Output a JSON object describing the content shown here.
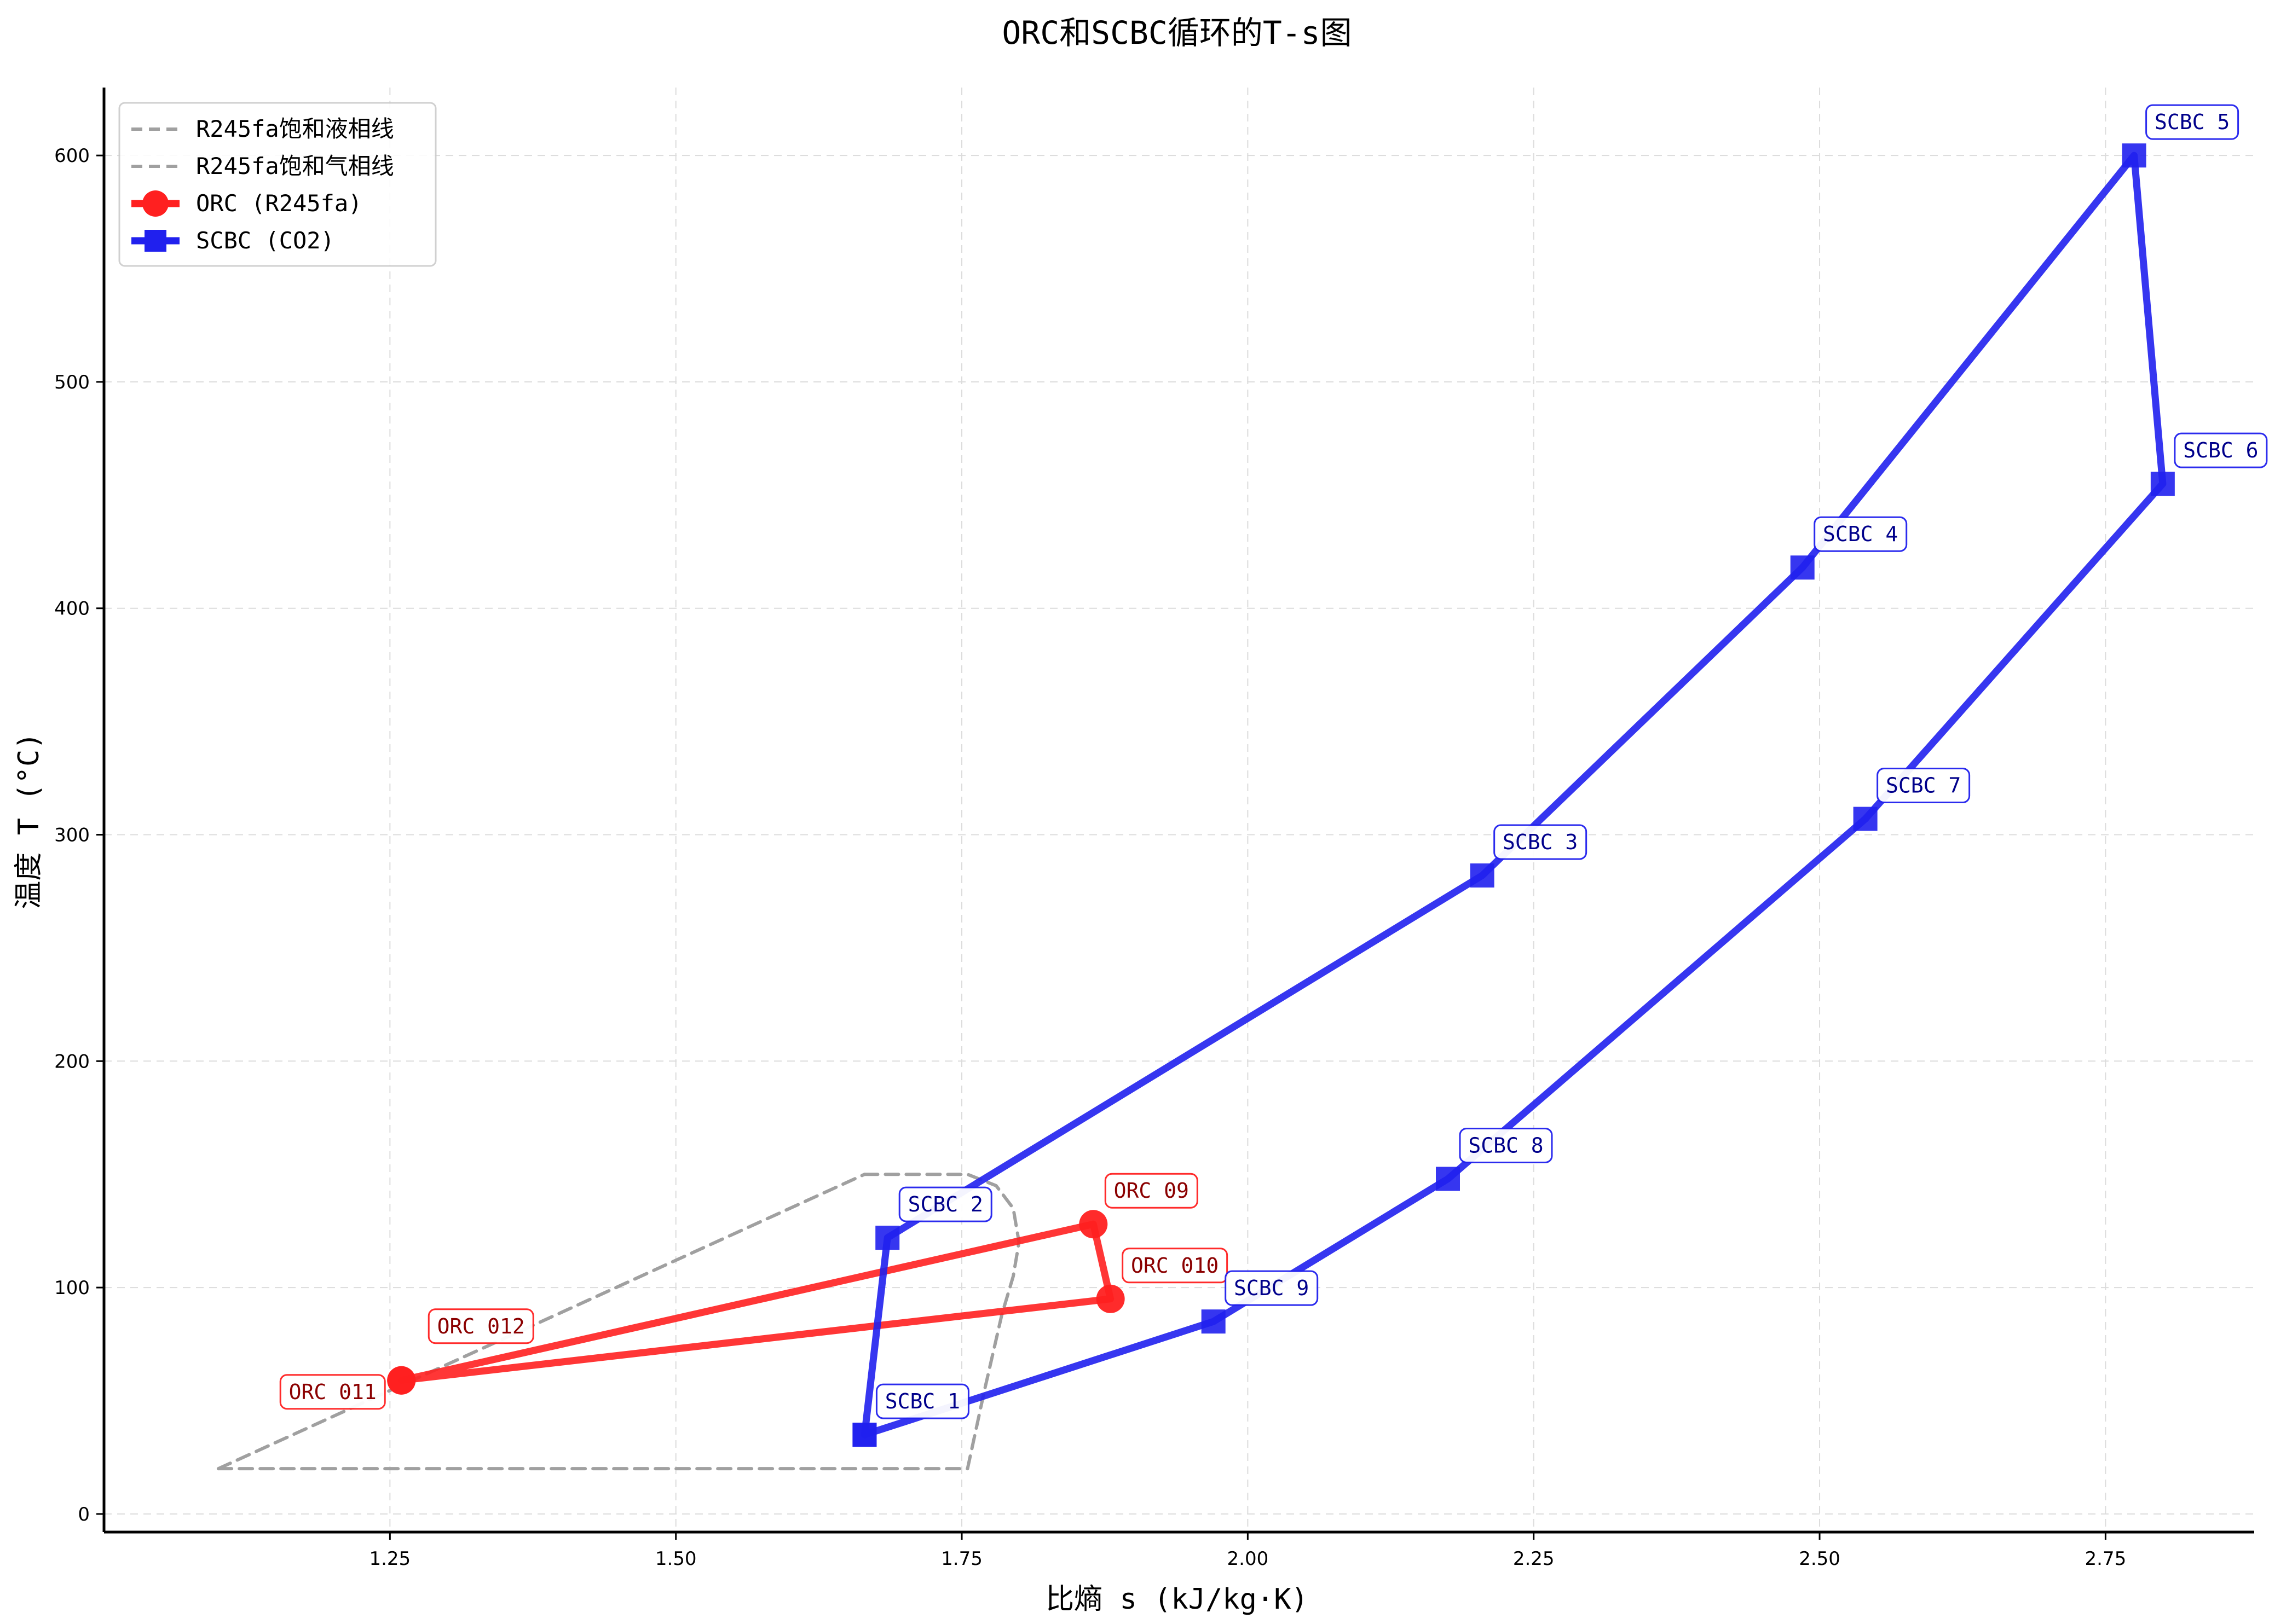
{
  "chart_data": {
    "type": "line",
    "title": "ORC和SCBC循环的T-s图",
    "xlabel": "比熵 s (kJ/kg·K)",
    "ylabel": "温度 T (°C)",
    "xlim": [
      1.0,
      2.88
    ],
    "ylim": [
      -8,
      630
    ],
    "xticks": [
      1.25,
      1.5,
      1.75,
      2.0,
      2.25,
      2.5,
      2.75
    ],
    "xtick_labels": [
      "1.25",
      "1.50",
      "1.75",
      "2.00",
      "2.25",
      "2.50",
      "2.75"
    ],
    "yticks": [
      0,
      100,
      200,
      300,
      400,
      500,
      600
    ],
    "ytick_labels": [
      "0",
      "100",
      "200",
      "300",
      "400",
      "500",
      "600"
    ],
    "grid": true,
    "legend_position": "top-left",
    "series": [
      {
        "name": "R245fa饱和液相线",
        "style": "dashed",
        "color": "#a0a0a0",
        "points": [
          [
            1.1,
            20
          ],
          [
            1.1,
            20
          ],
          [
            1.665,
            150
          ]
        ]
      },
      {
        "name": "R245fa饱和气相线",
        "style": "dashed",
        "color": "#a0a0a0",
        "points": [
          [
            1.665,
            150
          ],
          [
            1.755,
            150
          ],
          [
            1.78,
            145
          ],
          [
            1.795,
            135
          ],
          [
            1.8,
            120
          ],
          [
            1.795,
            105
          ],
          [
            1.785,
            88
          ],
          [
            1.77,
            55
          ],
          [
            1.755,
            20
          ],
          [
            1.1,
            20
          ]
        ]
      },
      {
        "name": "ORC (R245fa)",
        "style": "solid",
        "marker": "circle",
        "color": "#ff2020",
        "points": [
          [
            1.26,
            59
          ],
          [
            1.865,
            128
          ],
          [
            1.88,
            95
          ],
          [
            1.26,
            59
          ]
        ],
        "labels": [
          "ORC 011",
          "ORC 09",
          "ORC 010",
          "ORC 012"
        ],
        "label_points": [
          [
            1.26,
            59
          ],
          [
            1.865,
            128
          ],
          [
            1.88,
            95
          ],
          [
            1.26,
            59
          ]
        ],
        "label_side": [
          "left",
          "right",
          "right",
          "right"
        ]
      },
      {
        "name": "SCBC (CO2)",
        "style": "solid",
        "marker": "square",
        "color": "#2020ee",
        "points": [
          [
            1.665,
            35
          ],
          [
            1.685,
            122
          ],
          [
            2.205,
            282
          ],
          [
            2.485,
            418
          ],
          [
            2.775,
            600
          ],
          [
            2.8,
            455
          ],
          [
            2.54,
            307
          ],
          [
            2.175,
            148
          ],
          [
            1.97,
            85
          ],
          [
            1.665,
            35
          ]
        ],
        "labels": [
          "SCBC 1",
          "SCBC 2",
          "SCBC 3",
          "SCBC 4",
          "SCBC 5",
          "SCBC 6",
          "SCBC 7",
          "SCBC 8",
          "SCBC 9"
        ]
      }
    ]
  }
}
